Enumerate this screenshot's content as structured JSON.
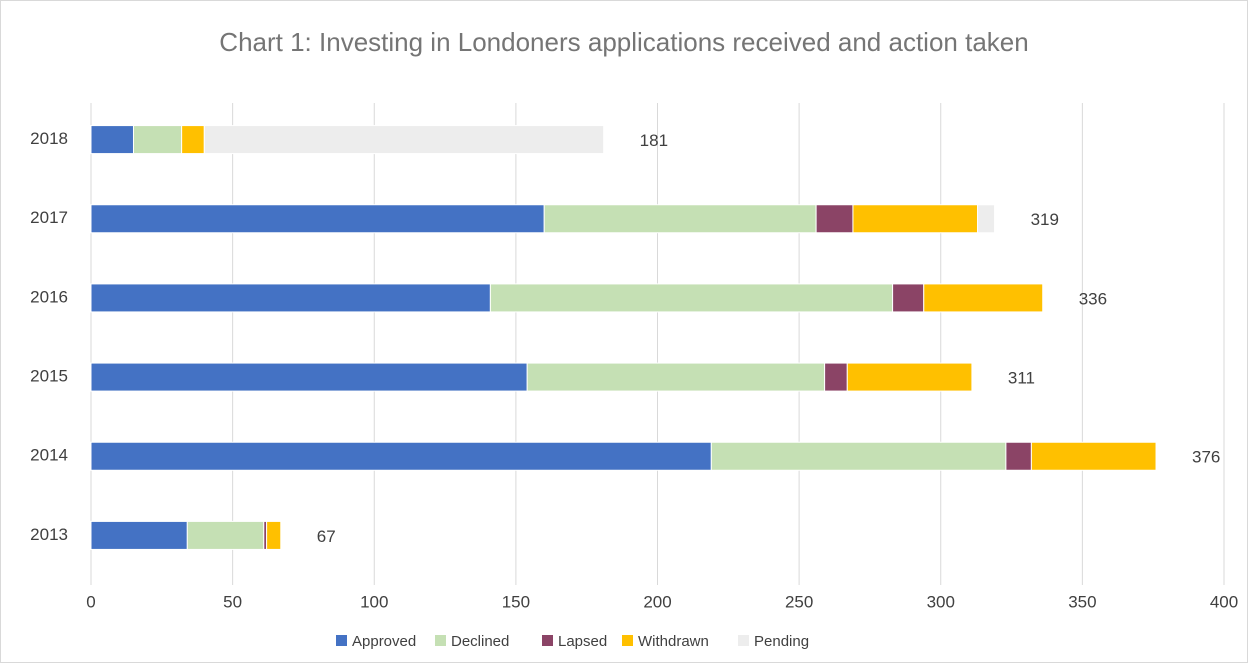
{
  "chart_data": {
    "type": "stacked_bar_horizontal",
    "title": "Chart 1: Investing in Londoners applications received and action taken",
    "categories": [
      "2018",
      "2017",
      "2016",
      "2015",
      "2014",
      "2013"
    ],
    "series": [
      {
        "name": "Approved",
        "color": "#4472c4",
        "values": [
          15,
          160,
          141,
          154,
          219,
          34
        ]
      },
      {
        "name": "Declined",
        "color": "#c5e0b4",
        "values": [
          17,
          96,
          142,
          105,
          104,
          27
        ]
      },
      {
        "name": "Lapsed",
        "color": "#8b4466",
        "values": [
          0,
          13,
          11,
          8,
          9,
          1
        ]
      },
      {
        "name": "Withdrawn",
        "color": "#ffc000",
        "values": [
          8,
          44,
          42,
          44,
          44,
          5
        ]
      },
      {
        "name": "Pending",
        "color": "#ededed",
        "values": [
          141,
          6,
          0,
          0,
          0,
          0
        ]
      }
    ],
    "totals": [
      181,
      319,
      336,
      311,
      376,
      67
    ],
    "xlim": [
      0,
      400
    ],
    "xticks": [
      0,
      50,
      100,
      150,
      200,
      250,
      300,
      350,
      400
    ],
    "grid": true,
    "legend": "bottom"
  }
}
